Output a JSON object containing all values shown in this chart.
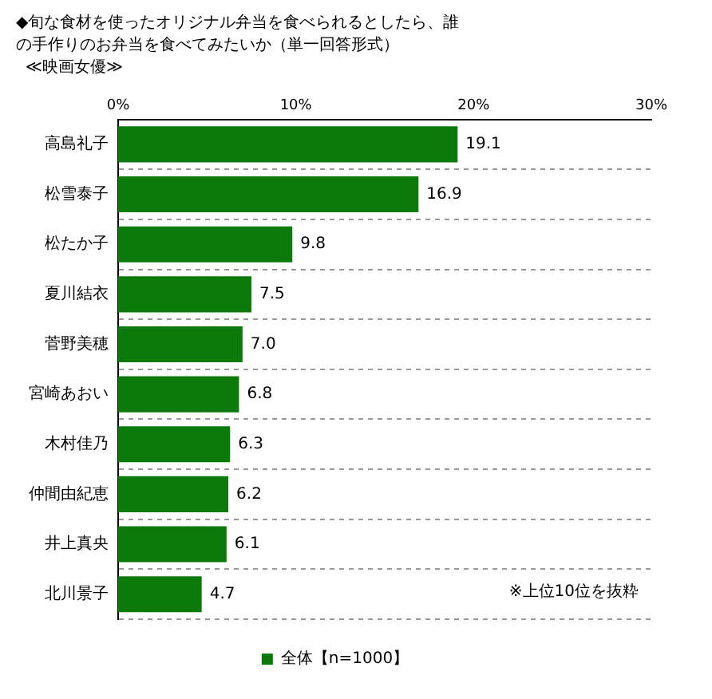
{
  "chart_data": {
    "type": "bar",
    "orientation": "horizontal",
    "title": "◆旬な食材を使ったオリジナル弁当を食べられるとしたら、誰の手作りのお弁当を食べてみたいか（単一回答形式）",
    "subtitle": "≪映画女優≫",
    "categories": [
      "高島礼子",
      "松雪泰子",
      "松たか子",
      "夏川結衣",
      "菅野美穂",
      "宮崎あおい",
      "木村佳乃",
      "仲間由紀恵",
      "井上真央",
      "北川景子"
    ],
    "series": [
      {
        "name": "全体【n=1000】",
        "color": "#0b7a0b",
        "values": [
          19.1,
          16.9,
          9.8,
          7.5,
          7.0,
          6.8,
          6.3,
          6.2,
          6.1,
          4.7
        ],
        "value_labels": [
          "19.1",
          "16.9",
          "9.8",
          "7.5",
          "7.0",
          "6.8",
          "6.3",
          "6.2",
          "6.1",
          "4.7"
        ]
      }
    ],
    "xlim": [
      0,
      30
    ],
    "xticks": [
      {
        "value": 0,
        "label": "0%"
      },
      {
        "value": 10,
        "label": "10%"
      },
      {
        "value": 20,
        "label": "20%"
      },
      {
        "value": 30,
        "label": "30%"
      }
    ],
    "grid": "y",
    "line_style": "dashed",
    "legend": "bottom",
    "annotations": [
      "※上位10位を抜粋"
    ]
  }
}
